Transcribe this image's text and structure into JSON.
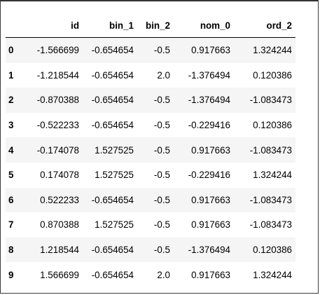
{
  "table": {
    "columns": [
      "",
      "id",
      "bin_1",
      "bin_2",
      "nom_0",
      "ord_2"
    ],
    "rows": [
      {
        "index": "0",
        "cells": [
          "-1.566699",
          "-0.654654",
          "-0.5",
          "0.917663",
          "1.324244"
        ]
      },
      {
        "index": "1",
        "cells": [
          "-1.218544",
          "-0.654654",
          "2.0",
          "-1.376494",
          "0.120386"
        ]
      },
      {
        "index": "2",
        "cells": [
          "-0.870388",
          "-0.654654",
          "-0.5",
          "-1.376494",
          "-1.083473"
        ]
      },
      {
        "index": "3",
        "cells": [
          "-0.522233",
          "-0.654654",
          "-0.5",
          "-0.229416",
          "0.120386"
        ]
      },
      {
        "index": "4",
        "cells": [
          "-0.174078",
          "1.527525",
          "-0.5",
          "0.917663",
          "-1.083473"
        ]
      },
      {
        "index": "5",
        "cells": [
          "0.174078",
          "1.527525",
          "-0.5",
          "-0.229416",
          "1.324244"
        ]
      },
      {
        "index": "6",
        "cells": [
          "0.522233",
          "-0.654654",
          "-0.5",
          "0.917663",
          "-1.083473"
        ]
      },
      {
        "index": "7",
        "cells": [
          "0.870388",
          "1.527525",
          "-0.5",
          "0.917663",
          "-1.083473"
        ]
      },
      {
        "index": "8",
        "cells": [
          "1.218544",
          "-0.654654",
          "-0.5",
          "-1.376494",
          "0.120386"
        ]
      },
      {
        "index": "9",
        "cells": [
          "1.566699",
          "-0.654654",
          "2.0",
          "0.917663",
          "1.324244"
        ]
      }
    ]
  },
  "colors": {
    "striped_row": "#f5f5f5",
    "plain_row": "#ffffff",
    "header_rule": "#000000",
    "frame_border": "#3a3a3a"
  }
}
